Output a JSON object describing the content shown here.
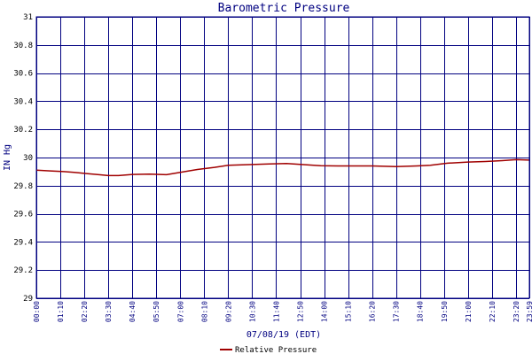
{
  "colors": {
    "background": "#ffffff",
    "grid": "#000080",
    "series": "#a00000",
    "text": "#000080"
  },
  "chart_data": {
    "type": "line",
    "title": "Barometric Pressure",
    "ylabel": "IN Hg",
    "xlabel": "07/08/19 (EDT)",
    "ylim": [
      29,
      31
    ],
    "yticks": [
      "31",
      "30.8",
      "30.6",
      "30.4",
      "30.2",
      "30",
      "29.8",
      "29.6",
      "29.4",
      "29.2",
      "29"
    ],
    "ytick_values": [
      31,
      30.8,
      30.6,
      30.4,
      30.2,
      30,
      29.8,
      29.6,
      29.4,
      29.2,
      29
    ],
    "xticks": [
      "00:00",
      "01:10",
      "02:20",
      "03:30",
      "04:40",
      "05:50",
      "07:00",
      "08:10",
      "09:20",
      "10:30",
      "11:40",
      "12:50",
      "14:00",
      "15:10",
      "16:20",
      "17:30",
      "18:40",
      "19:50",
      "21:00",
      "22:10",
      "23:20",
      "23:59"
    ],
    "xtick_values": [
      0,
      70,
      140,
      210,
      280,
      350,
      420,
      490,
      560,
      630,
      700,
      770,
      840,
      910,
      980,
      1050,
      1120,
      1190,
      1260,
      1330,
      1400,
      1439
    ],
    "xlim": [
      0,
      1439
    ],
    "grid": true,
    "legend_position": "bottom-center",
    "series": [
      {
        "name": "Relative Pressure",
        "x": [
          0,
          40,
          80,
          110,
          150,
          190,
          210,
          240,
          280,
          330,
          380,
          420,
          470,
          520,
          560,
          620,
          680,
          730,
          780,
          830,
          880,
          930,
          980,
          1050,
          1110,
          1150,
          1200,
          1260,
          1310,
          1360,
          1400,
          1439
        ],
        "y": [
          29.91,
          29.905,
          29.9,
          29.895,
          29.885,
          29.877,
          29.872,
          29.872,
          29.88,
          29.882,
          29.878,
          29.895,
          29.915,
          29.93,
          29.945,
          29.95,
          29.955,
          29.958,
          29.95,
          29.942,
          29.94,
          29.94,
          29.94,
          29.935,
          29.94,
          29.945,
          29.96,
          29.968,
          29.972,
          29.978,
          29.985,
          29.982
        ]
      }
    ]
  }
}
